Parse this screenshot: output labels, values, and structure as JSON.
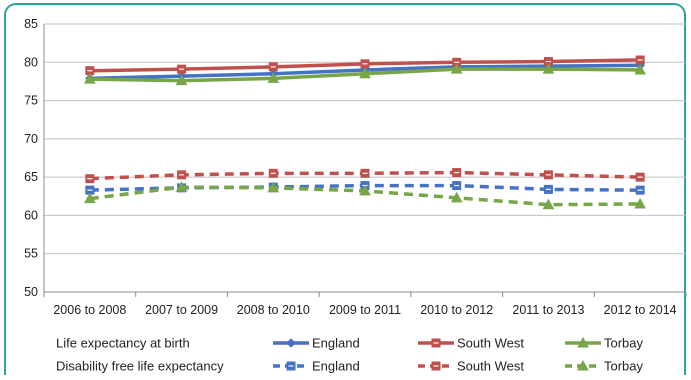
{
  "chart_data": {
    "type": "line",
    "categories": [
      "2006 to 2008",
      "2007 to 2009",
      "2008 to 2010",
      "2009 to 2011",
      "2010 to 2012",
      "2011 to 2013",
      "2012 to 2014"
    ],
    "ylim": [
      50,
      85
    ],
    "yticks": [
      50,
      55,
      60,
      65,
      70,
      75,
      80,
      85
    ],
    "grid": true,
    "legend_position": "bottom",
    "legend_groups": [
      "Life expectancy at birth",
      "Disability free life expectancy"
    ],
    "series": [
      {
        "name": "England",
        "group": "Life expectancy at birth",
        "style": "solid",
        "marker": "diamond",
        "color": "#4472c4",
        "values": [
          77.9,
          78.2,
          78.5,
          79.0,
          79.4,
          79.5,
          79.6
        ]
      },
      {
        "name": "South West",
        "group": "Life expectancy at birth",
        "style": "solid",
        "marker": "square",
        "color": "#c0504d",
        "values": [
          78.9,
          79.1,
          79.4,
          79.8,
          80.0,
          80.1,
          80.3
        ]
      },
      {
        "name": "Torbay",
        "group": "Life expectancy at birth",
        "style": "solid",
        "marker": "triangle",
        "color": "#77a548",
        "values": [
          77.8,
          77.6,
          77.9,
          78.5,
          79.1,
          79.1,
          79.0
        ]
      },
      {
        "name": "England",
        "group": "Disability free life expectancy",
        "style": "dashed",
        "marker": "square",
        "color": "#4472c4",
        "values": [
          63.3,
          63.6,
          63.7,
          63.9,
          63.9,
          63.4,
          63.3
        ]
      },
      {
        "name": "South West",
        "group": "Disability free life expectancy",
        "style": "dashed",
        "marker": "square",
        "color": "#c0504d",
        "values": [
          64.8,
          65.3,
          65.5,
          65.5,
          65.6,
          65.3,
          65.0
        ]
      },
      {
        "name": "Torbay",
        "group": "Disability free life expectancy",
        "style": "dashed",
        "marker": "triangle",
        "color": "#77a548",
        "values": [
          62.2,
          63.7,
          63.6,
          63.2,
          62.3,
          61.4,
          61.5
        ]
      }
    ]
  }
}
